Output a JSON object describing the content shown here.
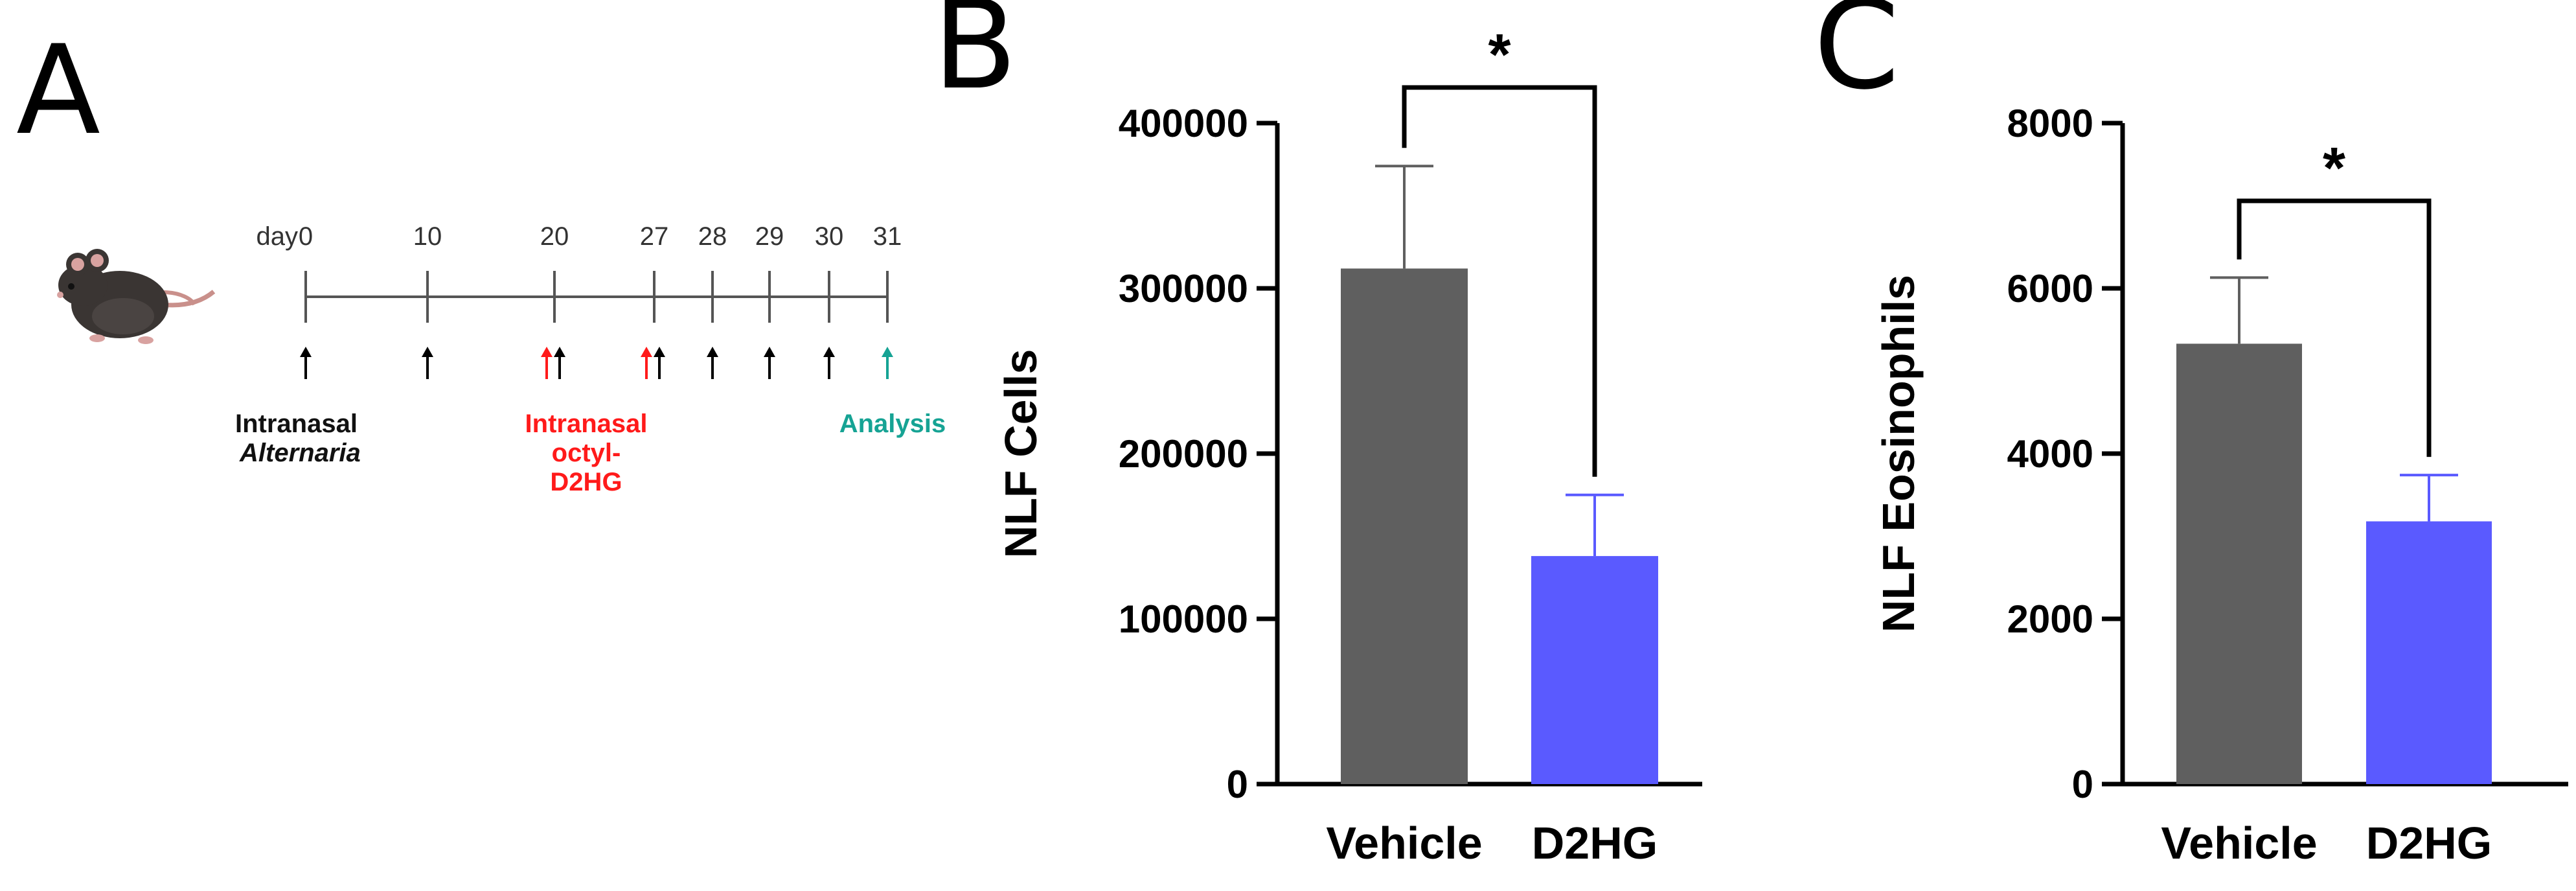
{
  "panels": {
    "a": {
      "letter": "A",
      "day_prefix": "day",
      "days": [
        0,
        10,
        20,
        27,
        28,
        29,
        30,
        31
      ],
      "label_black": [
        "Intranasal",
        "Alternaria"
      ],
      "label_red": [
        "Intranasal",
        "octyl-",
        "D2HG"
      ],
      "label_teal": "Analysis",
      "colors": {
        "black": "#000000",
        "red": "#ff1a1a",
        "teal": "#16a394"
      }
    },
    "b": {
      "letter": "B"
    },
    "c": {
      "letter": "C"
    }
  },
  "chart_data": [
    {
      "type": "bar",
      "panel": "B",
      "categories": [
        "Vehicle",
        "D2HG"
      ],
      "values": [
        312000,
        138000
      ],
      "errors": [
        62000,
        37000
      ],
      "colors": [
        "#5f5f5f",
        "#5a5aff"
      ],
      "ylabel": "NLF Cells",
      "ylim": [
        0,
        400000
      ],
      "yticks": [
        0,
        100000,
        200000,
        300000,
        400000
      ],
      "significance": "*"
    },
    {
      "type": "bar",
      "panel": "C",
      "categories": [
        "Vehicle",
        "D2HG"
      ],
      "values": [
        5330,
        3180
      ],
      "errors": [
        800,
        560
      ],
      "colors": [
        "#5f5f5f",
        "#5a5aff"
      ],
      "ylabel": "NLF Eosinophils",
      "ylim": [
        0,
        8000
      ],
      "yticks": [
        0,
        2000,
        4000,
        6000,
        8000
      ],
      "significance": "*"
    }
  ]
}
